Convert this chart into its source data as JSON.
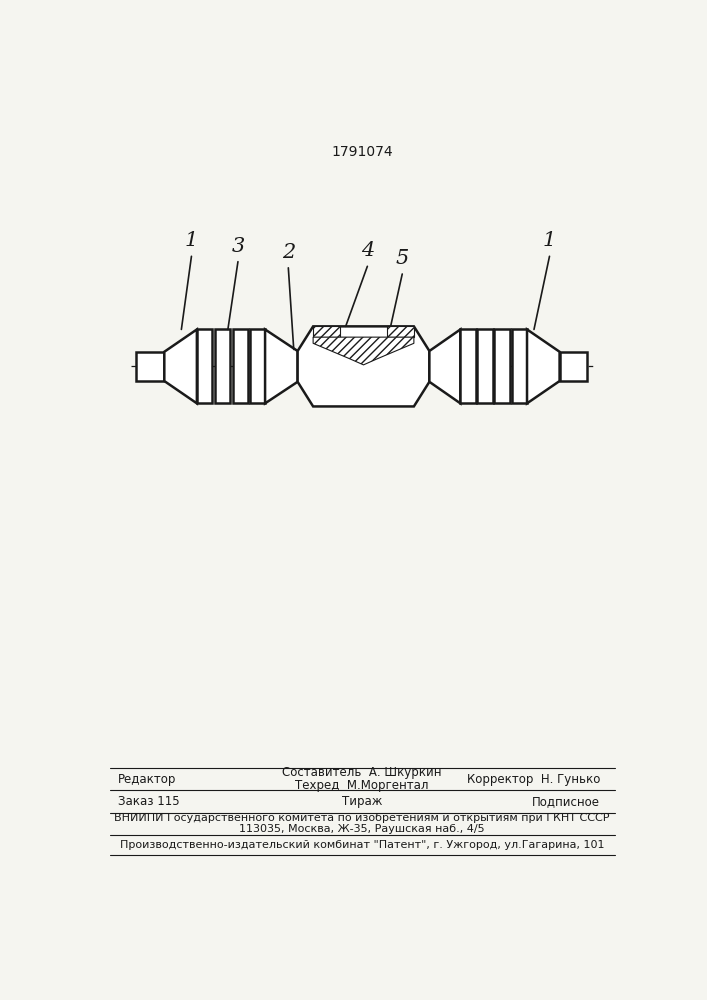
{
  "patent_number": "1791074",
  "background_color": "#f5f5f0",
  "line_color": "#1a1a1a",
  "label_1_left": "1",
  "label_3": "3",
  "label_2": "2",
  "label_4": "4",
  "label_5": "5",
  "label_1_right": "1",
  "footer_line1_left": "Редактор",
  "footer_line1_center": "Составитель  А. Шкуркин",
  "footer_line2_center": "Техред  М.Моргентал",
  "footer_line1_right": "Корректор  Н. Гунько",
  "footer_order": "Заказ 115",
  "footer_tirazh": "Тираж",
  "footer_podpisnoe": "Подписное",
  "footer_vniip": "ВНИИПИ Государственного комитета по изобретениям и открытиям при ГКНТ СССР",
  "footer_address": "113035, Москва, Ж-35, Раушская наб., 4/5",
  "footer_producer": "Производственно-издательский комбинат \"Патент\", г. Ужгород, ул.Гагарина, 101"
}
